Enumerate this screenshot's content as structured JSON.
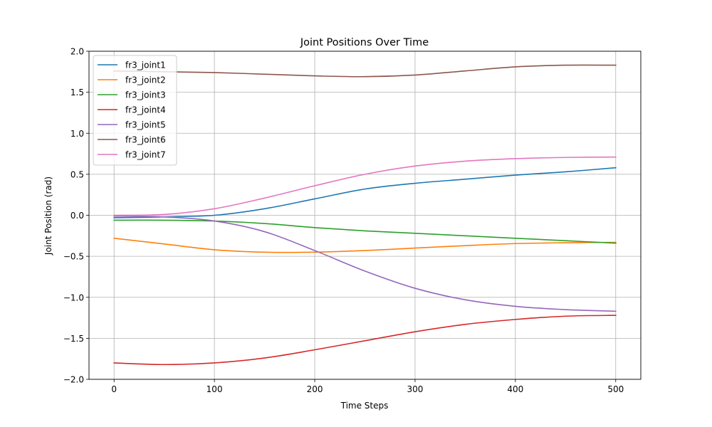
{
  "chart_data": {
    "type": "line",
    "title": "Joint Positions Over Time",
    "xlabel": "Time Steps",
    "ylabel": "Joint Position (rad)",
    "xlim": [
      -25,
      525
    ],
    "ylim": [
      -2.0,
      2.0
    ],
    "xticks": [
      0,
      100,
      200,
      300,
      400,
      500
    ],
    "xtick_labels": [
      "0",
      "100",
      "200",
      "300",
      "400",
      "500"
    ],
    "yticks": [
      -2.0,
      -1.5,
      -1.0,
      -0.5,
      0.0,
      0.5,
      1.0,
      1.5,
      2.0
    ],
    "ytick_labels": [
      "−2.0",
      "−1.5",
      "−1.0",
      "−0.5",
      "0.0",
      "0.5",
      "1.0",
      "1.5",
      "2.0"
    ],
    "grid": true,
    "legend_position": "upper-left",
    "x": [
      0,
      50,
      100,
      150,
      200,
      250,
      300,
      350,
      400,
      450,
      500
    ],
    "series": [
      {
        "name": "fr3_joint1",
        "color": "#1f77b4",
        "values": [
          -0.03,
          -0.02,
          0.0,
          0.08,
          0.2,
          0.32,
          0.39,
          0.44,
          0.49,
          0.53,
          0.58
        ]
      },
      {
        "name": "fr3_joint2",
        "color": "#ff7f0e",
        "values": [
          -0.28,
          -0.35,
          -0.42,
          -0.45,
          -0.45,
          -0.43,
          -0.4,
          -0.37,
          -0.345,
          -0.335,
          -0.33
        ]
      },
      {
        "name": "fr3_joint3",
        "color": "#2ca02c",
        "values": [
          -0.06,
          -0.06,
          -0.07,
          -0.1,
          -0.15,
          -0.19,
          -0.22,
          -0.25,
          -0.28,
          -0.31,
          -0.34
        ]
      },
      {
        "name": "fr3_joint4",
        "color": "#d62728",
        "values": [
          -1.8,
          -1.82,
          -1.8,
          -1.74,
          -1.64,
          -1.53,
          -1.42,
          -1.33,
          -1.27,
          -1.23,
          -1.22
        ]
      },
      {
        "name": "fr3_joint5",
        "color": "#9467bd",
        "values": [
          -0.01,
          -0.02,
          -0.07,
          -0.2,
          -0.43,
          -0.68,
          -0.89,
          -1.03,
          -1.11,
          -1.15,
          -1.17
        ]
      },
      {
        "name": "fr3_joint6",
        "color": "#8c564b",
        "values": [
          1.76,
          1.75,
          1.74,
          1.72,
          1.7,
          1.69,
          1.71,
          1.76,
          1.81,
          1.83,
          1.83
        ]
      },
      {
        "name": "fr3_joint7",
        "color": "#e377c2",
        "values": [
          0.0,
          0.01,
          0.08,
          0.21,
          0.36,
          0.5,
          0.6,
          0.66,
          0.69,
          0.705,
          0.71
        ]
      }
    ]
  }
}
